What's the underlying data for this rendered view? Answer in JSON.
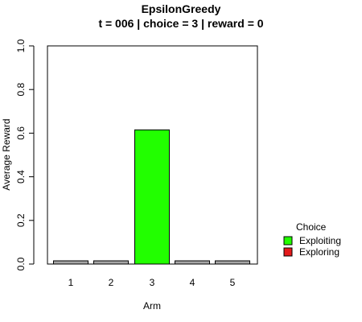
{
  "chart_data": {
    "type": "bar",
    "title": "EpsilonGreedy",
    "subtitle": "t = 006 | choice = 3 | reward = 0",
    "xlabel": "Arm",
    "ylabel": "Average Reward",
    "categories": [
      "1",
      "2",
      "3",
      "4",
      "5"
    ],
    "values": [
      0.0,
      0.0,
      0.615,
      0.0,
      0.0
    ],
    "bar_fill": [
      "#a6a6a6",
      "#a6a6a6",
      "#22ff00",
      "#a6a6a6",
      "#a6a6a6"
    ],
    "ylim": [
      0,
      1
    ],
    "yticks": [
      "0.0",
      "0.2",
      "0.4",
      "0.6",
      "0.8",
      "1.0"
    ],
    "grid": false,
    "legend": {
      "title": "Choice",
      "placement": "right",
      "entries": [
        {
          "label": "Exploiting",
          "color": "#22ff00"
        },
        {
          "label": "Exploring",
          "color": "#e41a1c"
        }
      ]
    }
  }
}
